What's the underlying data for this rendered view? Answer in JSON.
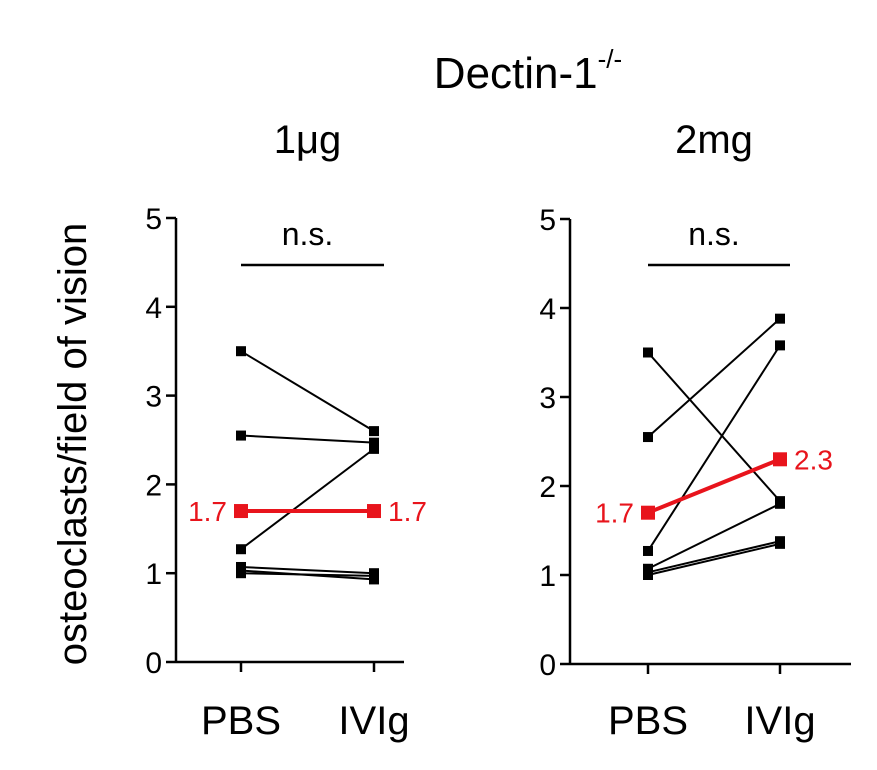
{
  "figure": {
    "title_main": "Dectin-1",
    "title_superscript": "-/-",
    "ylabel": "osteoclasts/field of vision"
  },
  "colors": {
    "ink": "#000000",
    "mean": "#e8141c"
  },
  "chart_data": [
    {
      "type": "line",
      "title": "1μg",
      "categories": [
        "PBS",
        "IVIg"
      ],
      "ylim": [
        0,
        5
      ],
      "yticks": [
        0,
        1,
        2,
        3,
        4,
        5
      ],
      "ytick_labels": [
        "0",
        "1",
        "2",
        "3",
        "4",
        "5"
      ],
      "significance": "n.s.",
      "pairs": [
        [
          3.5,
          2.6
        ],
        [
          2.55,
          2.47
        ],
        [
          1.27,
          2.4
        ],
        [
          1.07,
          1.0
        ],
        [
          1.03,
          0.93
        ],
        [
          1.0,
          0.97
        ]
      ],
      "mean": {
        "values": [
          1.7,
          1.7
        ],
        "labels": [
          "1.7",
          "1.7"
        ]
      }
    },
    {
      "type": "line",
      "title": "2mg",
      "categories": [
        "PBS",
        "IVIg"
      ],
      "ylim": [
        0,
        5
      ],
      "yticks": [
        0,
        1,
        2,
        3,
        4,
        5
      ],
      "ytick_labels": [
        "0",
        "1",
        "2",
        "3",
        "4",
        "5"
      ],
      "significance": "n.s.",
      "pairs": [
        [
          3.5,
          1.83
        ],
        [
          2.55,
          3.88
        ],
        [
          1.27,
          3.58
        ],
        [
          1.07,
          1.8
        ],
        [
          1.03,
          1.38
        ],
        [
          1.0,
          1.35
        ]
      ],
      "mean": {
        "values": [
          1.7,
          2.3
        ],
        "labels": [
          "1.7",
          "2.3"
        ]
      }
    }
  ]
}
